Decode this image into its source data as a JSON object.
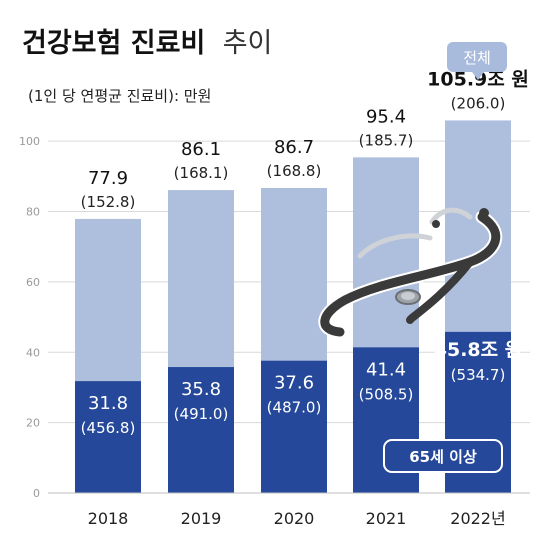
{
  "title": "건강보험 진료비",
  "title_suffix": "추이",
  "subtitle": "(1인 당 연평균 진료비): 만원",
  "badge_total": "전체",
  "badge_senior": "65세 이상",
  "colors": {
    "total_bar": "#aebedd",
    "senior_bar": "#25489a",
    "badge_total": "#a9bbdd",
    "badge_senior": "#25489a",
    "grid": "#d9d9d9"
  },
  "chart_data": {
    "type": "bar",
    "stacked": false,
    "categories": [
      "2018",
      "2019",
      "2020",
      "2021",
      "2022년"
    ],
    "ylim": [
      0,
      110
    ],
    "yticks": [
      0,
      20,
      40,
      60,
      80,
      100
    ],
    "grid": true,
    "series": [
      {
        "name": "전체",
        "values": [
          77.9,
          86.1,
          86.7,
          95.4,
          105.9
        ],
        "labels": [
          "77.9",
          "86.1",
          "86.7",
          "95.4",
          "105.9조 원"
        ],
        "sublabels": [
          "(152.8)",
          "(168.1)",
          "(168.8)",
          "(185.7)",
          "(206.0)"
        ]
      },
      {
        "name": "65세 이상",
        "values": [
          31.8,
          35.8,
          37.6,
          41.4,
          45.8
        ],
        "labels": [
          "31.8",
          "35.8",
          "37.6",
          "41.4",
          "45.8조 원"
        ],
        "sublabels": [
          "(456.8)",
          "(491.0)",
          "(487.0)",
          "(508.5)",
          "(534.7)"
        ]
      }
    ]
  }
}
